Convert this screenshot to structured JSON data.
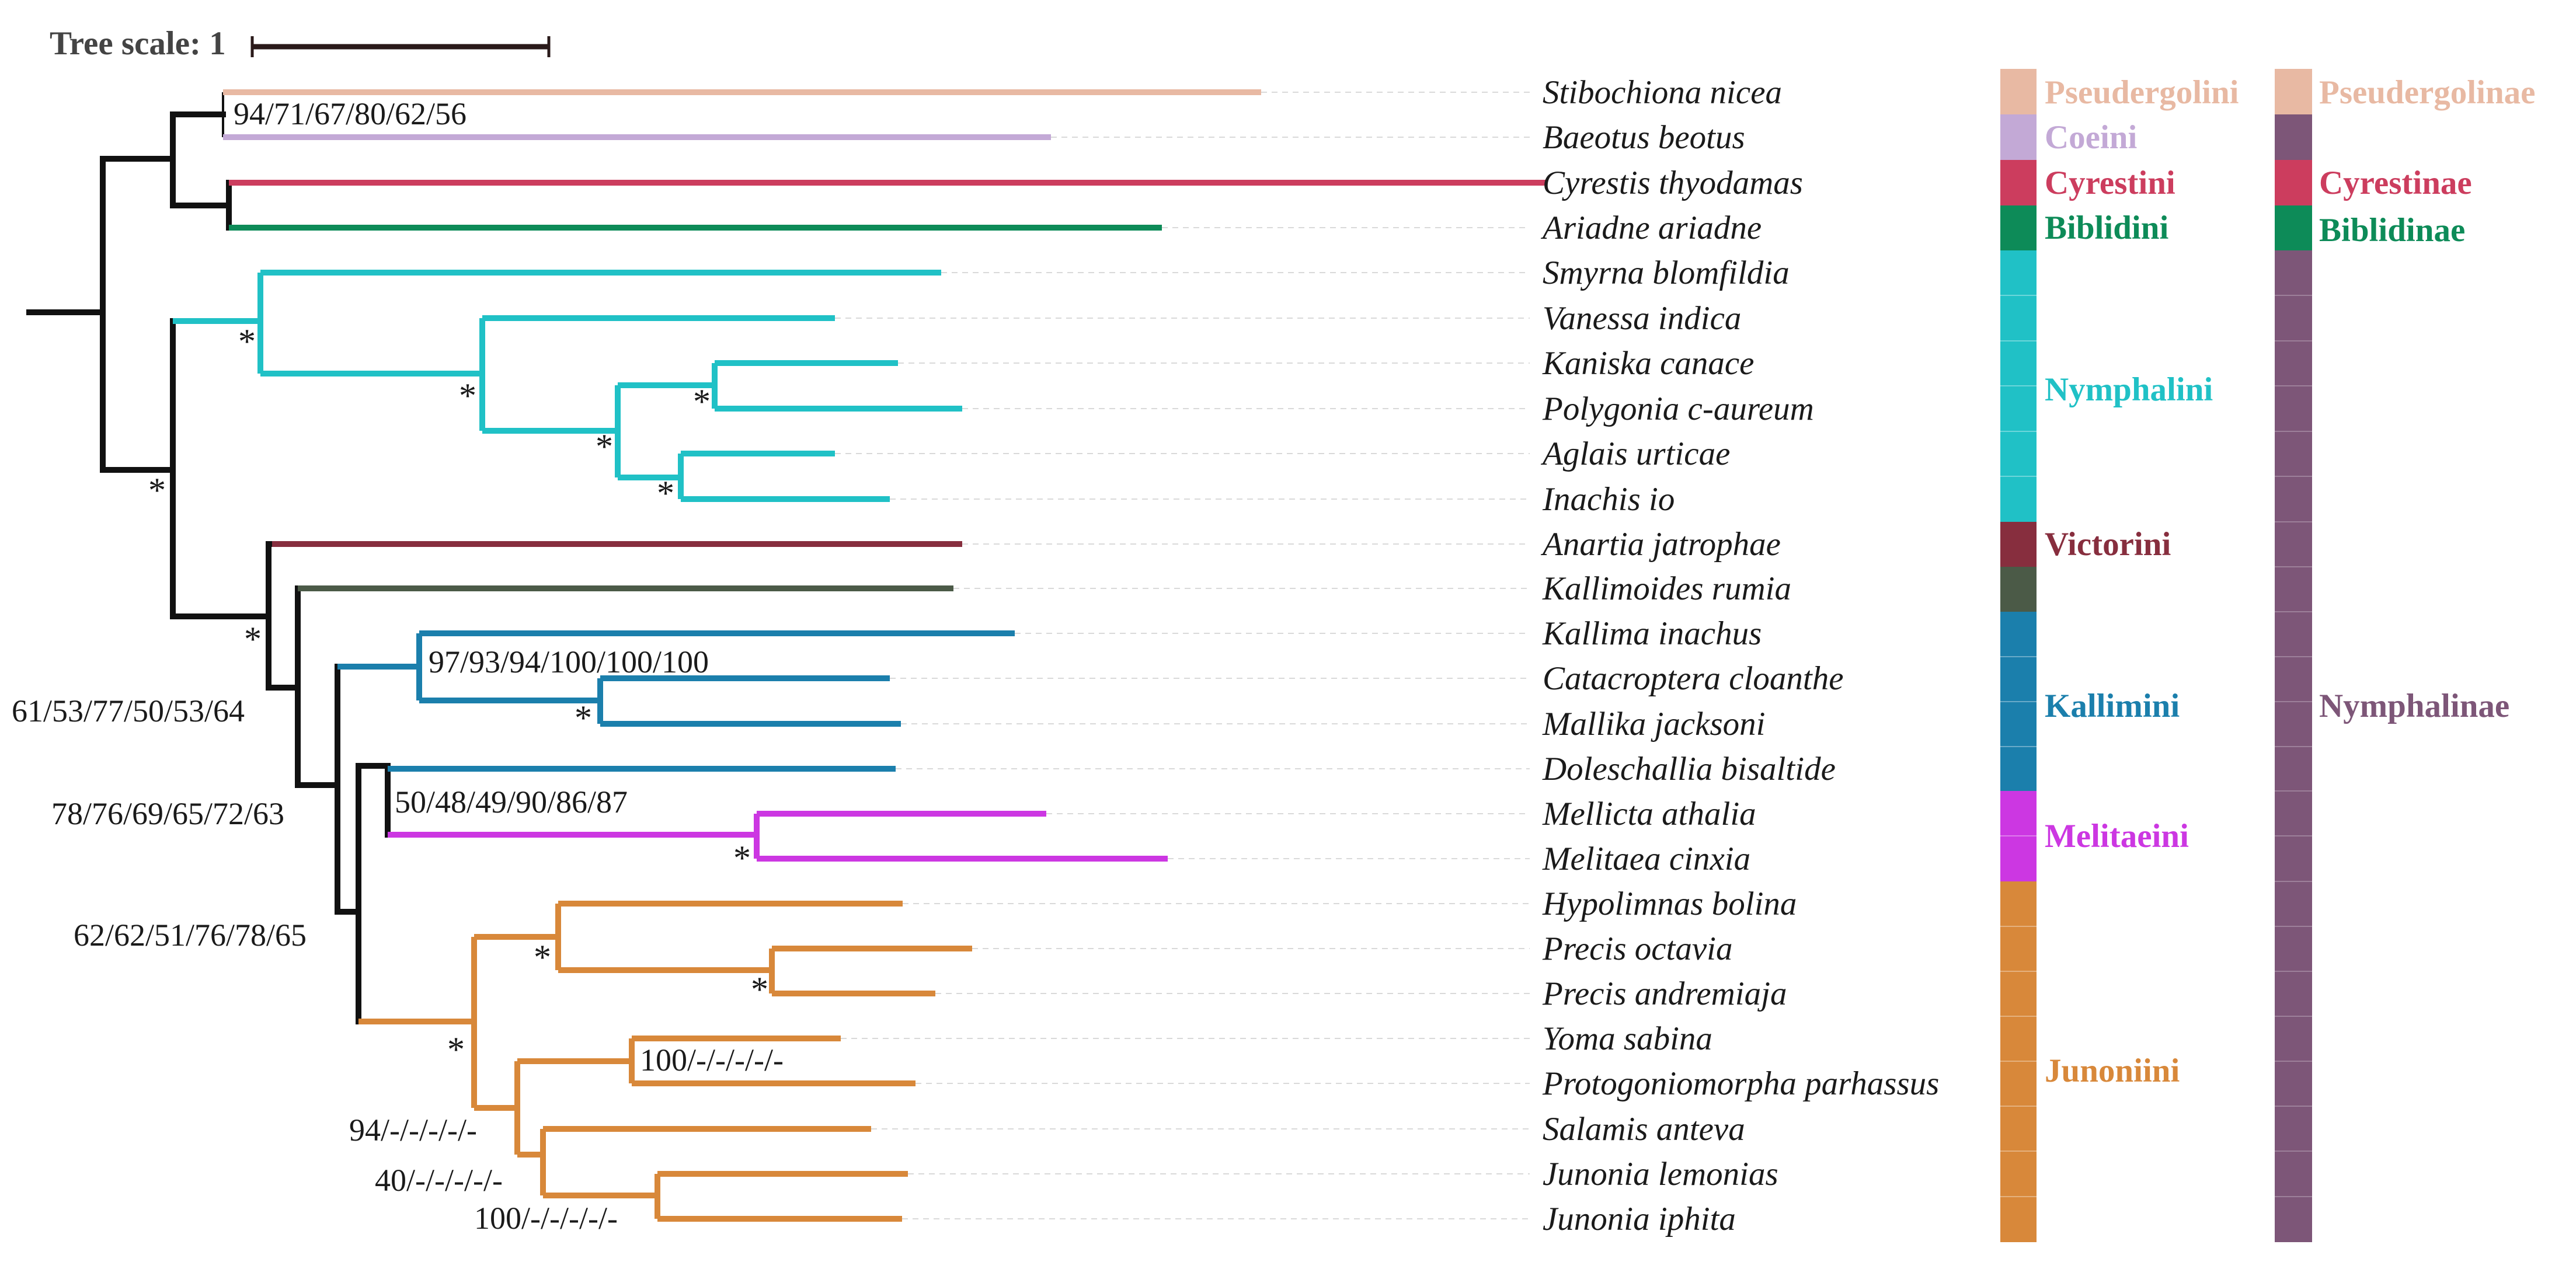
{
  "tree_scale": {
    "label": "Tree scale: 1"
  },
  "colors": {
    "pseudergolini": "#e8b9a3",
    "coeini": "#c3a9d6",
    "cyrestini": "#cc3d5e",
    "biblidini": "#0d8b58",
    "nymphalini": "#20c1c6",
    "victorini": "#872e3e",
    "kallimoides": "#4b5a47",
    "kallimini": "#1b7fac",
    "melitaeini": "#cc37e2",
    "junoniini": "#d8883a",
    "nymphalinae": "#7d5678",
    "stem": "#111111"
  },
  "taxa": [
    "Stibochiona nicea",
    "Baeotus beotus",
    "Cyrestis thyodamas",
    "Ariadne ariadne",
    "Smyrna blomfildia",
    "Vanessa indica",
    "Kaniska canace",
    "Polygonia c-aureum",
    "Aglais urticae",
    "Inachis io",
    "Anartia jatrophae",
    "Kallimoides rumia",
    "Kallima inachus",
    "Catacroptera cloanthe",
    "Mallika jacksoni",
    "Doleschallia bisaltide",
    "Mellicta athalia",
    "Melitaea cinxia",
    "Hypolimnas bolina",
    "Precis octavia",
    "Precis andremiaja",
    "Yoma sabina",
    "Protogoniomorpha parhassus",
    "Salamis anteva",
    "Junonia lemonias",
    "Junonia iphita"
  ],
  "support_labels": {
    "pseudergolini_coeini": "94/71/67/80/62/56",
    "kallima_group": "97/93/94/100/100/100",
    "kallimini_junoniini": "61/53/77/50/53/64",
    "kallimini_melitaeini": "78/76/69/65/72/63",
    "melitaeini_doleschallia": "50/48/49/90/86/87",
    "melitaeini_junoniini": "62/62/51/76/78/65",
    "yoma_protogoniomorpha": "100/-/-/-/-/-",
    "yoma_salamis_junonia": "94/-/-/-/-/-",
    "salamis_junonia": "40/-/-/-/-/-",
    "junonia_pair": "100/-/-/-/-/-",
    "star": "*"
  },
  "tribes": [
    "Pseudergolini",
    "Coeini",
    "Cyrestini",
    "Biblidini",
    "Nymphalini",
    "Victorini",
    "Kallimini",
    "Melitaeini",
    "Junoniini"
  ],
  "subfamilies": [
    "Pseudergolinae",
    "Cyrestinae",
    "Biblidinae",
    "Nymphalinae"
  ]
}
